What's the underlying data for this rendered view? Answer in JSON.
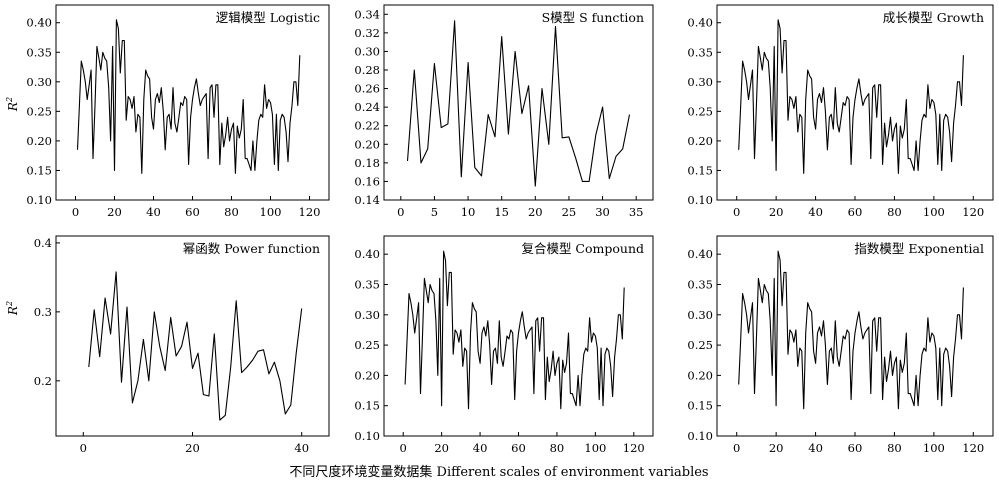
{
  "figure": {
    "xlabel": "不同尺度环境变量数据集 Different scales of environment variables",
    "ylabel": "R",
    "ylabel_sup": "2"
  },
  "chart_data": [
    {
      "type": "line",
      "title": "逻辑模型 Logistic",
      "ylabel": "R²",
      "xlim": [
        -10,
        130
      ],
      "ylim": [
        0.1,
        0.43
      ],
      "xticks": [
        0,
        20,
        40,
        60,
        80,
        100,
        120
      ],
      "yticks": [
        0.1,
        0.15,
        0.2,
        0.25,
        0.3,
        0.35,
        0.4
      ],
      "ytick_labels": [
        "0.10",
        "0.15",
        "0.20",
        "0.25",
        "0.30",
        "0.35",
        "0.40"
      ],
      "x_start": 1,
      "values": [
        0.185,
        0.26,
        0.335,
        0.32,
        0.3,
        0.27,
        0.295,
        0.32,
        0.17,
        0.26,
        0.36,
        0.34,
        0.32,
        0.35,
        0.34,
        0.335,
        0.29,
        0.2,
        0.36,
        0.15,
        0.405,
        0.39,
        0.315,
        0.37,
        0.37,
        0.235,
        0.275,
        0.27,
        0.255,
        0.275,
        0.215,
        0.245,
        0.24,
        0.145,
        0.27,
        0.32,
        0.31,
        0.305,
        0.24,
        0.22,
        0.27,
        0.28,
        0.265,
        0.29,
        0.25,
        0.185,
        0.24,
        0.245,
        0.22,
        0.29,
        0.23,
        0.215,
        0.24,
        0.265,
        0.26,
        0.275,
        0.27,
        0.16,
        0.24,
        0.27,
        0.29,
        0.305,
        0.28,
        0.26,
        0.27,
        0.275,
        0.28,
        0.17,
        0.29,
        0.295,
        0.24,
        0.295,
        0.295,
        0.16,
        0.23,
        0.19,
        0.21,
        0.24,
        0.2,
        0.22,
        0.23,
        0.145,
        0.225,
        0.205,
        0.22,
        0.27,
        0.17,
        0.17,
        0.16,
        0.15,
        0.2,
        0.15,
        0.2,
        0.235,
        0.245,
        0.24,
        0.295,
        0.255,
        0.27,
        0.265,
        0.245,
        0.16,
        0.245,
        0.15,
        0.235,
        0.245,
        0.24,
        0.215,
        0.165,
        0.23,
        0.26,
        0.3,
        0.3,
        0.26,
        0.345
      ]
    },
    {
      "type": "line",
      "title": "S模型 S function",
      "xlim": [
        -2.5,
        37.5
      ],
      "ylim": [
        0.14,
        0.35
      ],
      "xticks": [
        0,
        5,
        10,
        15,
        20,
        25,
        30,
        35
      ],
      "yticks": [
        0.14,
        0.16,
        0.18,
        0.2,
        0.22,
        0.24,
        0.26,
        0.28,
        0.3,
        0.32,
        0.34
      ],
      "ytick_labels": [
        "0.14",
        "0.16",
        "0.18",
        "0.20",
        "0.22",
        "0.24",
        "0.26",
        "0.28",
        "0.30",
        "0.32",
        "0.34"
      ],
      "x_start": 1,
      "values": [
        0.182,
        0.28,
        0.18,
        0.195,
        0.287,
        0.218,
        0.222,
        0.333,
        0.165,
        0.288,
        0.175,
        0.166,
        0.232,
        0.208,
        0.316,
        0.211,
        0.3,
        0.233,
        0.263,
        0.155,
        0.26,
        0.2,
        0.327,
        0.207,
        0.208,
        0.185,
        0.16,
        0.16,
        0.21,
        0.24,
        0.163,
        0.187,
        0.195,
        0.232
      ]
    },
    {
      "type": "line",
      "title": "成长模型 Growth",
      "xlim": [
        -10,
        130
      ],
      "ylim": [
        0.1,
        0.43
      ],
      "xticks": [
        0,
        20,
        40,
        60,
        80,
        100,
        120
      ],
      "yticks": [
        0.1,
        0.15,
        0.2,
        0.25,
        0.3,
        0.35,
        0.4
      ],
      "ytick_labels": [
        "0.10",
        "0.15",
        "0.20",
        "0.25",
        "0.30",
        "0.35",
        "0.40"
      ],
      "x_start": 1,
      "values": [
        0.185,
        0.26,
        0.335,
        0.32,
        0.3,
        0.27,
        0.295,
        0.32,
        0.17,
        0.26,
        0.36,
        0.34,
        0.32,
        0.35,
        0.34,
        0.335,
        0.29,
        0.2,
        0.36,
        0.15,
        0.405,
        0.39,
        0.315,
        0.37,
        0.37,
        0.235,
        0.275,
        0.27,
        0.255,
        0.275,
        0.215,
        0.245,
        0.24,
        0.145,
        0.27,
        0.32,
        0.31,
        0.305,
        0.24,
        0.22,
        0.27,
        0.28,
        0.265,
        0.29,
        0.25,
        0.185,
        0.24,
        0.245,
        0.22,
        0.29,
        0.23,
        0.215,
        0.24,
        0.265,
        0.26,
        0.275,
        0.27,
        0.16,
        0.24,
        0.27,
        0.29,
        0.305,
        0.28,
        0.26,
        0.27,
        0.275,
        0.28,
        0.17,
        0.29,
        0.295,
        0.24,
        0.295,
        0.295,
        0.16,
        0.23,
        0.19,
        0.21,
        0.24,
        0.2,
        0.22,
        0.23,
        0.145,
        0.225,
        0.205,
        0.22,
        0.27,
        0.17,
        0.17,
        0.16,
        0.15,
        0.2,
        0.15,
        0.2,
        0.235,
        0.245,
        0.24,
        0.295,
        0.255,
        0.27,
        0.265,
        0.245,
        0.16,
        0.245,
        0.15,
        0.235,
        0.245,
        0.24,
        0.215,
        0.165,
        0.23,
        0.26,
        0.3,
        0.3,
        0.26,
        0.345
      ]
    },
    {
      "type": "line",
      "title": "幂函数 Power function",
      "ylabel": "R²",
      "xlim": [
        -5,
        45
      ],
      "ylim": [
        0.12,
        0.41
      ],
      "xticks": [
        0,
        20,
        40
      ],
      "yticks": [
        0.2,
        0.3,
        0.4
      ],
      "ytick_labels": [
        "0.2",
        "0.3",
        "0.4"
      ],
      "x_start": 1,
      "values": [
        0.22,
        0.303,
        0.235,
        0.32,
        0.268,
        0.358,
        0.198,
        0.307,
        0.168,
        0.2,
        0.26,
        0.2,
        0.3,
        0.25,
        0.215,
        0.292,
        0.236,
        0.25,
        0.285,
        0.218,
        0.24,
        0.18,
        0.178,
        0.268,
        0.143,
        0.15,
        0.22,
        0.316,
        0.212,
        0.22,
        0.23,
        0.243,
        0.245,
        0.21,
        0.227,
        0.2,
        0.152,
        0.165,
        0.24,
        0.305
      ]
    },
    {
      "type": "line",
      "title": "复合模型 Compound",
      "xlim": [
        -10,
        130
      ],
      "ylim": [
        0.1,
        0.43
      ],
      "xticks": [
        0,
        20,
        40,
        60,
        80,
        100,
        120
      ],
      "yticks": [
        0.1,
        0.15,
        0.2,
        0.25,
        0.3,
        0.35,
        0.4
      ],
      "ytick_labels": [
        "0.10",
        "0.15",
        "0.20",
        "0.25",
        "0.30",
        "0.35",
        "0.40"
      ],
      "x_start": 1,
      "values": [
        0.185,
        0.26,
        0.335,
        0.32,
        0.3,
        0.27,
        0.295,
        0.32,
        0.17,
        0.26,
        0.36,
        0.34,
        0.32,
        0.35,
        0.34,
        0.335,
        0.29,
        0.2,
        0.36,
        0.15,
        0.405,
        0.39,
        0.315,
        0.37,
        0.37,
        0.235,
        0.275,
        0.27,
        0.255,
        0.275,
        0.215,
        0.245,
        0.24,
        0.145,
        0.27,
        0.32,
        0.31,
        0.305,
        0.24,
        0.22,
        0.27,
        0.28,
        0.265,
        0.29,
        0.25,
        0.185,
        0.24,
        0.245,
        0.22,
        0.29,
        0.23,
        0.215,
        0.24,
        0.265,
        0.26,
        0.275,
        0.27,
        0.16,
        0.24,
        0.27,
        0.29,
        0.305,
        0.28,
        0.26,
        0.27,
        0.275,
        0.28,
        0.17,
        0.29,
        0.295,
        0.24,
        0.295,
        0.295,
        0.16,
        0.23,
        0.19,
        0.21,
        0.24,
        0.2,
        0.22,
        0.23,
        0.145,
        0.225,
        0.205,
        0.22,
        0.27,
        0.17,
        0.17,
        0.16,
        0.15,
        0.2,
        0.15,
        0.2,
        0.235,
        0.245,
        0.24,
        0.295,
        0.255,
        0.27,
        0.265,
        0.245,
        0.16,
        0.245,
        0.15,
        0.235,
        0.245,
        0.24,
        0.215,
        0.165,
        0.23,
        0.26,
        0.3,
        0.3,
        0.26,
        0.345
      ]
    },
    {
      "type": "line",
      "title": "指数模型 Exponential",
      "xlim": [
        -10,
        130
      ],
      "ylim": [
        0.1,
        0.43
      ],
      "xticks": [
        0,
        20,
        40,
        60,
        80,
        100,
        120
      ],
      "yticks": [
        0.1,
        0.15,
        0.2,
        0.25,
        0.3,
        0.35,
        0.4
      ],
      "ytick_labels": [
        "0.10",
        "0.15",
        "0.20",
        "0.25",
        "0.30",
        "0.35",
        "0.40"
      ],
      "x_start": 1,
      "values": [
        0.185,
        0.26,
        0.335,
        0.32,
        0.3,
        0.27,
        0.295,
        0.32,
        0.17,
        0.26,
        0.36,
        0.34,
        0.32,
        0.35,
        0.34,
        0.335,
        0.29,
        0.2,
        0.36,
        0.15,
        0.405,
        0.39,
        0.315,
        0.37,
        0.37,
        0.235,
        0.275,
        0.27,
        0.255,
        0.275,
        0.215,
        0.245,
        0.24,
        0.145,
        0.27,
        0.32,
        0.31,
        0.305,
        0.24,
        0.22,
        0.27,
        0.28,
        0.265,
        0.29,
        0.25,
        0.185,
        0.24,
        0.245,
        0.22,
        0.29,
        0.23,
        0.215,
        0.24,
        0.265,
        0.26,
        0.275,
        0.27,
        0.16,
        0.24,
        0.27,
        0.29,
        0.305,
        0.28,
        0.26,
        0.27,
        0.275,
        0.28,
        0.17,
        0.29,
        0.295,
        0.24,
        0.295,
        0.295,
        0.16,
        0.23,
        0.19,
        0.21,
        0.24,
        0.2,
        0.22,
        0.23,
        0.145,
        0.225,
        0.205,
        0.22,
        0.27,
        0.17,
        0.17,
        0.16,
        0.15,
        0.2,
        0.15,
        0.2,
        0.235,
        0.245,
        0.24,
        0.295,
        0.255,
        0.27,
        0.265,
        0.245,
        0.16,
        0.245,
        0.15,
        0.235,
        0.245,
        0.24,
        0.215,
        0.165,
        0.23,
        0.26,
        0.3,
        0.3,
        0.26,
        0.345
      ]
    }
  ]
}
